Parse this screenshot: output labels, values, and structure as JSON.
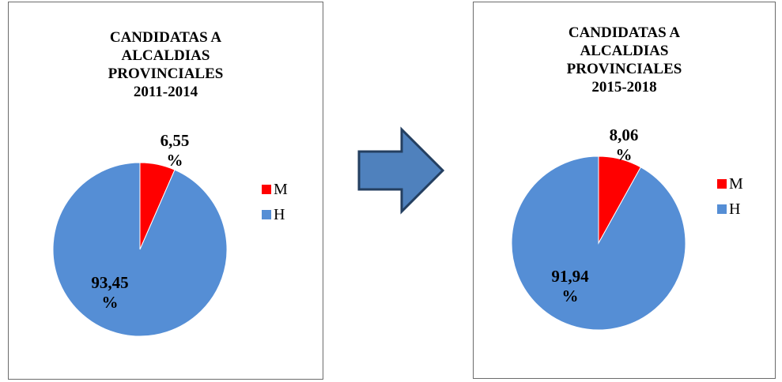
{
  "colors": {
    "M": "#ff0000",
    "H": "#558ed5",
    "arrow_fill": "#4f81bd",
    "arrow_stroke": "#243f60"
  },
  "chart_data": [
    {
      "type": "pie",
      "title": [
        "CANDIDATAS A",
        "ALCALDIAS",
        "PROVINCIALES",
        "2011-2014"
      ],
      "categories": [
        "M",
        "H"
      ],
      "values": [
        6.55,
        93.45
      ],
      "data_labels": [
        [
          "6,55",
          "%"
        ],
        [
          "93,45",
          "%"
        ]
      ],
      "legend": [
        {
          "label": "M",
          "color": "#ff0000"
        },
        {
          "label": "H",
          "color": "#558ed5"
        }
      ],
      "legend_position": "right"
    },
    {
      "type": "pie",
      "title": [
        "CANDIDATAS A",
        "ALCALDIAS",
        "PROVINCIALES",
        "2015-2018"
      ],
      "categories": [
        "M",
        "H"
      ],
      "values": [
        8.06,
        91.94
      ],
      "data_labels": [
        [
          "8,06",
          "%"
        ],
        [
          "91,94",
          "%"
        ]
      ],
      "legend": [
        {
          "label": "M",
          "color": "#ff0000"
        },
        {
          "label": "H",
          "color": "#558ed5"
        }
      ],
      "legend_position": "right"
    }
  ]
}
